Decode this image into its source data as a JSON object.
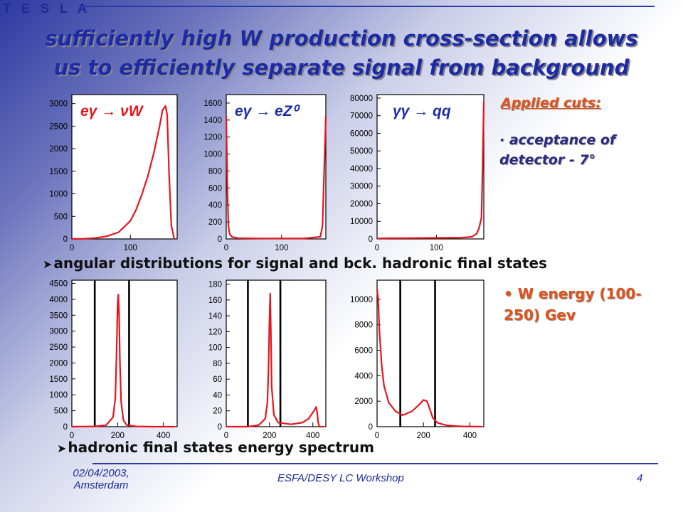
{
  "header": {
    "logo_text": "T E S L A"
  },
  "title": {
    "line1": "sufficiently high W production cross-section allows",
    "line2": "us to efficiently separate signal from background"
  },
  "cuts": {
    "heading": "Applied cuts:",
    "item1": "· acceptance of detector - 7°",
    "item2": "• W energy (100-250) Gev"
  },
  "bullets": {
    "angular": "angular distributions for signal and bck. hadronic final states",
    "energy": "hadronic final states energy spectrum"
  },
  "footer": {
    "date": "02/04/2003, Amsterdam",
    "conference": "ESFA/DESY LC Workshop",
    "page": "4"
  },
  "colors": {
    "title": "#1c2aa6",
    "accent": "#e0531c",
    "histogram": "#e8141c"
  },
  "chart_data": [
    {
      "type": "line",
      "label": "eγ → νW",
      "x": [
        0,
        20,
        40,
        60,
        80,
        100,
        110,
        120,
        130,
        140,
        150,
        155,
        160,
        163,
        166,
        170,
        175
      ],
      "y": [
        0,
        5,
        20,
        60,
        150,
        400,
        650,
        1000,
        1400,
        1900,
        2500,
        2850,
        2950,
        2750,
        1500,
        300,
        0
      ],
      "xticks": [
        "0",
        "100"
      ],
      "yticks": [
        "0",
        "500",
        "1000",
        "1500",
        "2000",
        "2500",
        "3000"
      ],
      "xlim": [
        0,
        180
      ],
      "ylim": [
        0,
        3200
      ]
    },
    {
      "type": "line",
      "label": "eγ → eZ⁰",
      "x": [
        0,
        2,
        4,
        6,
        10,
        20,
        60,
        100,
        140,
        170,
        174,
        176,
        180
      ],
      "y": [
        1450,
        600,
        150,
        60,
        25,
        10,
        5,
        5,
        5,
        25,
        150,
        600,
        1450
      ],
      "xticks": [
        "0",
        "100"
      ],
      "yticks": [
        "0",
        "200",
        "400",
        "600",
        "800",
        "1000",
        "1200",
        "1400",
        "1600"
      ],
      "xlim": [
        0,
        180
      ],
      "ylim": [
        0,
        1700
      ]
    },
    {
      "type": "line",
      "label": "γγ → qq",
      "x": [
        0,
        20,
        60,
        100,
        140,
        160,
        168,
        172,
        176,
        178,
        180
      ],
      "y": [
        300,
        400,
        500,
        600,
        700,
        1200,
        3000,
        6000,
        12000,
        40000,
        78000
      ],
      "xticks": [
        "0",
        "100"
      ],
      "yticks": [
        "0",
        "10000",
        "20000",
        "30000",
        "40000",
        "50000",
        "60000",
        "70000",
        "80000"
      ],
      "xlim": [
        0,
        180
      ],
      "ylim": [
        0,
        82000
      ]
    },
    {
      "type": "line",
      "label": "signal energy",
      "x": [
        0,
        100,
        150,
        180,
        190,
        195,
        200,
        203,
        206,
        210,
        215,
        225,
        240,
        280,
        350,
        450
      ],
      "y": [
        0,
        10,
        50,
        300,
        900,
        2200,
        3800,
        4150,
        3600,
        2000,
        800,
        200,
        50,
        10,
        0,
        0
      ],
      "cuts": [
        100,
        250
      ],
      "xticks": [
        "0",
        "200",
        "400"
      ],
      "yticks": [
        "0",
        "500",
        "1000",
        "1500",
        "2000",
        "2500",
        "3000",
        "3500",
        "4000",
        "4500"
      ],
      "xlim": [
        0,
        460
      ],
      "ylim": [
        0,
        4600
      ]
    },
    {
      "type": "line",
      "label": "eZ background energy",
      "x": [
        0,
        100,
        150,
        180,
        190,
        195,
        200,
        203,
        206,
        210,
        220,
        240,
        300,
        350,
        380,
        400,
        410,
        415,
        420,
        425,
        430,
        450
      ],
      "y": [
        0,
        0,
        2,
        10,
        30,
        70,
        140,
        168,
        120,
        50,
        15,
        5,
        3,
        5,
        10,
        18,
        22,
        25,
        18,
        5,
        0,
        0
      ],
      "cuts": [
        100,
        250
      ],
      "xticks": [
        "0",
        "200",
        "400"
      ],
      "yticks": [
        "0",
        "20",
        "40",
        "60",
        "80",
        "100",
        "120",
        "140",
        "160",
        "180"
      ],
      "xlim": [
        0,
        460
      ],
      "ylim": [
        0,
        185
      ]
    },
    {
      "type": "line",
      "label": "γγ background energy",
      "x": [
        0,
        5,
        10,
        20,
        30,
        50,
        80,
        110,
        150,
        180,
        200,
        215,
        225,
        240,
        260,
        300,
        360,
        450
      ],
      "y": [
        10800,
        10000,
        7500,
        4800,
        3200,
        1900,
        1200,
        900,
        1200,
        1700,
        2100,
        2000,
        1500,
        700,
        300,
        100,
        20,
        0
      ],
      "cuts": [
        100,
        250
      ],
      "xticks": [
        "0",
        "200",
        "400"
      ],
      "yticks": [
        "0",
        "2000",
        "4000",
        "6000",
        "8000",
        "10000"
      ],
      "xlim": [
        0,
        460
      ],
      "ylim": [
        0,
        11500
      ]
    }
  ]
}
